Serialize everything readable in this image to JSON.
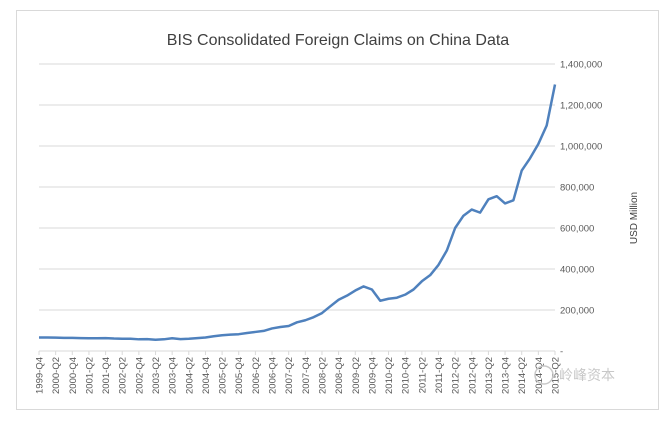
{
  "chart_data": {
    "type": "line",
    "title": "BIS Consolidated Foreign Claims on China Data",
    "xlabel": "",
    "ylabel": "USD Million",
    "ylim": [
      0,
      1400000
    ],
    "y_ticks": [
      {
        "value": 0,
        "label": "-"
      },
      {
        "value": 200000,
        "label": "200,000"
      },
      {
        "value": 400000,
        "label": "400,000"
      },
      {
        "value": 600000,
        "label": "600,000"
      },
      {
        "value": 800000,
        "label": "800,000"
      },
      {
        "value": 1000000,
        "label": "1,000,000"
      },
      {
        "value": 1200000,
        "label": "1,200,000"
      },
      {
        "value": 1400000,
        "label": "1,400,000"
      }
    ],
    "y_axis_side": "right",
    "grid": true,
    "line_color": "#4f81bd",
    "x": [
      "1999-Q4",
      "2000-Q1",
      "2000-Q2",
      "2000-Q3",
      "2000-Q4",
      "2001-Q1",
      "2001-Q2",
      "2001-Q3",
      "2001-Q4",
      "2002-Q1",
      "2002-Q2",
      "2002-Q3",
      "2002-Q4",
      "2003-Q1",
      "2003-Q2",
      "2003-Q3",
      "2003-Q4",
      "2004-Q1",
      "2004-Q2",
      "2004-Q3",
      "2004-Q4",
      "2005-Q1",
      "2005-Q2",
      "2005-Q3",
      "2005-Q4",
      "2006-Q1",
      "2006-Q2",
      "2006-Q3",
      "2006-Q4",
      "2007-Q1",
      "2007-Q2",
      "2007-Q3",
      "2007-Q4",
      "2008-Q1",
      "2008-Q2",
      "2008-Q3",
      "2008-Q4",
      "2009-Q1",
      "2009-Q2",
      "2009-Q3",
      "2009-Q4",
      "2010-Q1",
      "2010-Q2",
      "2010-Q3",
      "2010-Q4",
      "2011-Q1",
      "2011-Q2",
      "2011-Q3",
      "2011-Q4",
      "2012-Q1",
      "2012-Q2",
      "2012-Q3",
      "2012-Q4",
      "2013-Q1",
      "2013-Q2",
      "2013-Q3",
      "2013-Q4",
      "2014-Q1",
      "2014-Q2",
      "2014-Q3",
      "2014-Q4",
      "2015-Q1",
      "2015-Q2"
    ],
    "x_tick_labels": [
      "1999-Q4",
      "2000-Q2",
      "2000-Q4",
      "2001-Q2",
      "2001-Q4",
      "2002-Q2",
      "2002-Q4",
      "2003-Q2",
      "2003-Q4",
      "2004-Q2",
      "2004-Q4",
      "2005-Q2",
      "2005-Q4",
      "2006-Q2",
      "2006-Q4",
      "2007-Q2",
      "2007-Q4",
      "2008-Q2",
      "2008-Q4",
      "2009-Q2",
      "2009-Q4",
      "2010-Q2",
      "2010-Q4",
      "2011-Q2",
      "2011-Q4",
      "2012-Q2",
      "2012-Q4",
      "2013-Q2",
      "2013-Q4",
      "2014-Q2",
      "2014-Q4",
      "2015-Q2"
    ],
    "series": [
      {
        "values": [
          66000,
          66000,
          65000,
          64000,
          64000,
          63000,
          62000,
          62000,
          63000,
          61000,
          60000,
          60000,
          57000,
          58000,
          55000,
          57000,
          62000,
          58000,
          60000,
          63000,
          66000,
          72000,
          77000,
          80000,
          82000,
          88000,
          93000,
          98000,
          110000,
          117000,
          122000,
          140000,
          150000,
          165000,
          185000,
          218000,
          250000,
          270000,
          295000,
          315000,
          300000,
          245000,
          255000,
          260000,
          275000,
          300000,
          340000,
          370000,
          420000,
          490000,
          600000,
          660000,
          690000,
          675000,
          740000,
          755000,
          720000,
          735000,
          880000,
          940000,
          1010000,
          1100000,
          1300000
        ]
      }
    ]
  },
  "watermark": "岭峰资本"
}
